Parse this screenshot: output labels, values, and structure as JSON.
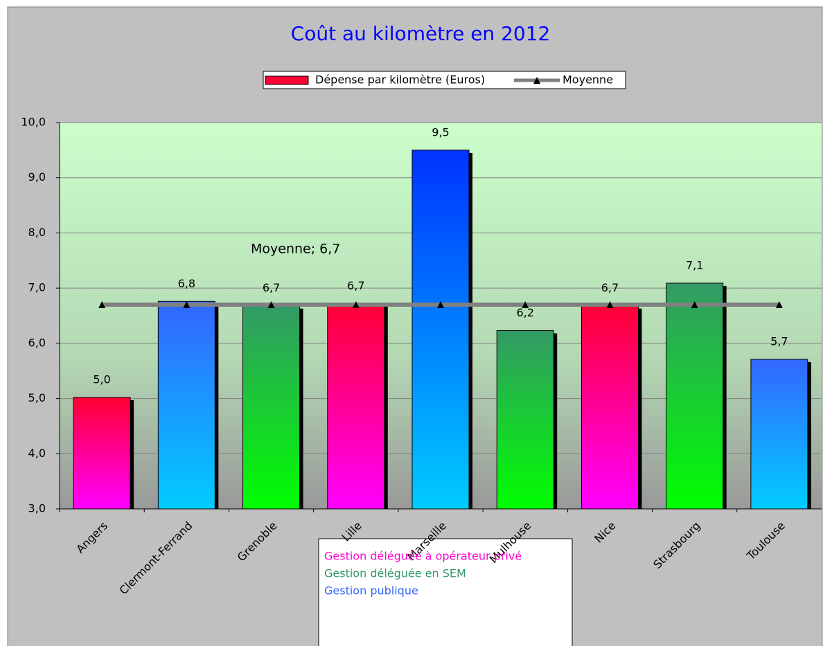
{
  "chart_data": {
    "type": "bar",
    "title": "Coût au kilomètre en 2012",
    "categories": [
      "Angers",
      "Clermont-Ferrand",
      "Grenoble",
      "Lille",
      "Marseille",
      "Mulhouse",
      "Nice",
      "Strasbourg",
      "Toulouse"
    ],
    "series": [
      {
        "name": "Dépense par kilomètre (Euros)",
        "type": "bar",
        "values": [
          5.02,
          6.76,
          6.68,
          6.72,
          9.5,
          6.23,
          6.68,
          7.09,
          5.71
        ],
        "value_labels": [
          "5,0",
          "6,8",
          "6,7",
          "6,7",
          "9,5",
          "6,2",
          "6,7",
          "7,1",
          "5,7"
        ],
        "colors": [
          "#ff0033",
          "#3366ff",
          "#339966",
          "#ff0033",
          "#0033ff",
          "#339966",
          "#ff0033",
          "#339966",
          "#3366ff"
        ],
        "colors_bottom": [
          "#ff00ff",
          "#00ccff",
          "#00ff00",
          "#ff00ff",
          "#00ccff",
          "#00ff00",
          "#ff00ff",
          "#00ff00",
          "#00ccff"
        ]
      },
      {
        "name": "Moyenne",
        "type": "line",
        "color": "#808080",
        "values": [
          6.7,
          6.7,
          6.7,
          6.7,
          6.7,
          6.7,
          6.7,
          6.7,
          6.7
        ]
      }
    ],
    "annotation": "Moyenne; 6,7",
    "annotation_value": 6.7,
    "ylim": [
      3,
      10
    ],
    "yticks": [
      {
        "value": 3,
        "label": "3,0"
      },
      {
        "value": 4,
        "label": "4,0"
      },
      {
        "value": 5,
        "label": "5,0"
      },
      {
        "value": 6,
        "label": "6,0"
      },
      {
        "value": 7,
        "label": "7,0"
      },
      {
        "value": 8,
        "label": "8,0"
      },
      {
        "value": 9,
        "label": "9,0"
      },
      {
        "value": 10,
        "label": "10,0"
      }
    ],
    "grid": true,
    "legend": "top",
    "notes": [
      {
        "text": "Gestion déléguée à opérateur privé",
        "color": "#ff00cc"
      },
      {
        "text": "Gestion déléguée en SEM",
        "color": "#339966"
      },
      {
        "text": "Gestion publique",
        "color": "#3366ff"
      }
    ]
  }
}
